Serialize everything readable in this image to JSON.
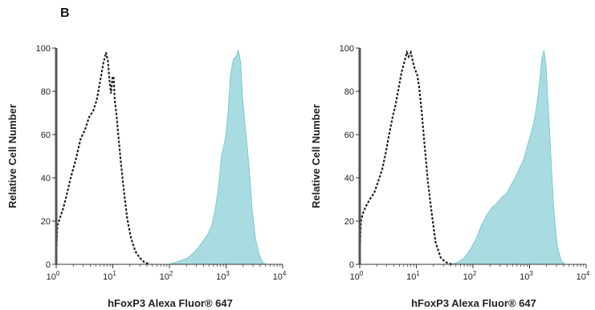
{
  "panel_label": "B",
  "chart_data": [
    {
      "type": "area",
      "title": "",
      "xlabel": "hFoxP3 Alexa Fluor® 647",
      "ylabel": "Relative Cell Number",
      "xscale": "log",
      "xlim": [
        1,
        10000
      ],
      "ylim": [
        0,
        100
      ],
      "yticks": [
        0,
        20,
        40,
        60,
        80,
        100
      ],
      "xtick_labels": [
        {
          "base": "10",
          "exp": "0"
        },
        {
          "base": "10",
          "exp": "1"
        },
        {
          "base": "10",
          "exp": "2"
        },
        {
          "base": "10",
          "exp": "3"
        },
        {
          "base": "10",
          "exp": "4"
        }
      ],
      "grid": false,
      "legend": "none",
      "series": [
        {
          "style": "dashed-outline",
          "color": "#222222",
          "x": [
            1.0,
            1.05,
            1.15,
            1.3,
            1.5,
            1.8,
            2.2,
            2.7,
            3.2,
            3.8,
            4.5,
            5.2,
            6.0,
            6.8,
            7.6,
            8.2,
            8.8,
            9.3,
            9.8,
            10.3,
            10.8,
            11.5,
            12.5,
            14,
            16,
            18,
            21,
            25,
            30,
            36,
            45
          ],
          "y": [
            5,
            18,
            21,
            25,
            31,
            40,
            48,
            58,
            62,
            68,
            71,
            76,
            85,
            93,
            98,
            94,
            84,
            79,
            86,
            87,
            76,
            70,
            60,
            46,
            32,
            21,
            12,
            6,
            3,
            1,
            0
          ]
        },
        {
          "style": "filled",
          "color": "#a8dce0",
          "x": [
            100,
            130,
            170,
            210,
            260,
            330,
            400,
            480,
            560,
            650,
            740,
            830,
            920,
            1000,
            1100,
            1200,
            1350,
            1500,
            1650,
            1800,
            1950,
            2100,
            2300,
            2600,
            2900,
            3300,
            3800,
            4400,
            5000
          ],
          "y": [
            0,
            1,
            2,
            3,
            5,
            8,
            11,
            14,
            18,
            26,
            36,
            50,
            55,
            60,
            72,
            88,
            95,
            96,
            99,
            94,
            78,
            68,
            58,
            42,
            25,
            12,
            5,
            1,
            0
          ]
        }
      ]
    },
    {
      "type": "area",
      "title": "",
      "xlabel": "hFoxP3 Alexa Fluor® 647",
      "ylabel": "Relative Cell Number",
      "xscale": "log",
      "xlim": [
        1,
        10000
      ],
      "ylim": [
        0,
        100
      ],
      "yticks": [
        0,
        20,
        40,
        60,
        80,
        100
      ],
      "xtick_labels": [
        {
          "base": "10",
          "exp": "0"
        },
        {
          "base": "10",
          "exp": "1"
        },
        {
          "base": "10",
          "exp": "2"
        },
        {
          "base": "10",
          "exp": "3"
        },
        {
          "base": "10",
          "exp": "4"
        }
      ],
      "grid": false,
      "legend": "none",
      "series": [
        {
          "style": "dashed-outline",
          "color": "#222222",
          "x": [
            1.0,
            1.05,
            1.15,
            1.3,
            1.5,
            1.8,
            2.1,
            2.5,
            2.9,
            3.3,
            3.8,
            4.3,
            4.9,
            5.5,
            6.2,
            6.8,
            7.3,
            8.0,
            8.8,
            9.5,
            10.3,
            11.2,
            12.5,
            14,
            16,
            19,
            22,
            27,
            33,
            42
          ],
          "y": [
            5,
            20,
            24,
            27,
            30,
            33,
            38,
            44,
            52,
            60,
            68,
            74,
            82,
            89,
            94,
            98,
            96,
            98,
            93,
            90,
            88,
            82,
            70,
            55,
            38,
            22,
            10,
            3,
            1,
            0
          ]
        },
        {
          "style": "filled",
          "color": "#a8dce0",
          "x": [
            40,
            55,
            70,
            90,
            115,
            140,
            170,
            210,
            260,
            320,
            400,
            480,
            580,
            680,
            800,
            920,
            1050,
            1200,
            1350,
            1500,
            1650,
            1800,
            1950,
            2150,
            2400,
            2700,
            3100,
            3600,
            4200
          ],
          "y": [
            0,
            1,
            3,
            7,
            12,
            18,
            22,
            26,
            28,
            31,
            33,
            37,
            41,
            45,
            49,
            55,
            60,
            66,
            74,
            84,
            95,
            99,
            92,
            72,
            48,
            24,
            8,
            2,
            0
          ]
        }
      ]
    }
  ]
}
